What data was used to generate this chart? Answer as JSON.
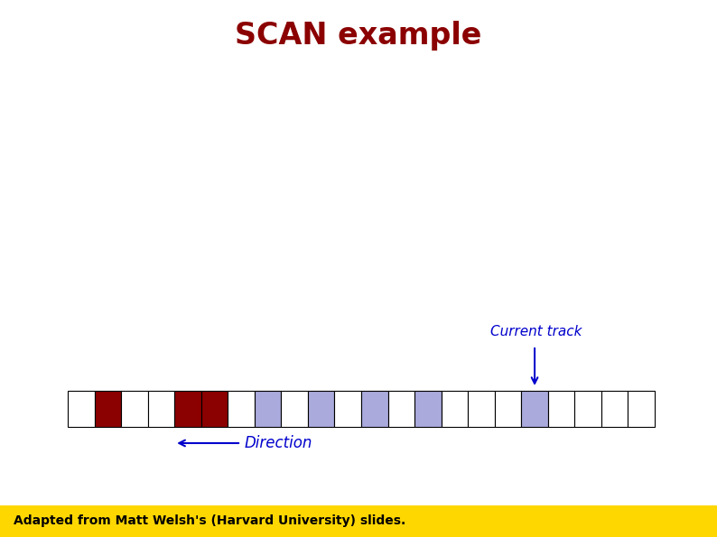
{
  "title": "SCAN example",
  "title_color": "#8B0000",
  "title_fontsize": 24,
  "title_bold": true,
  "num_cells": 22,
  "dark_red_cells": [
    1,
    4,
    5
  ],
  "light_blue_cells": [
    7,
    9,
    11,
    13,
    17
  ],
  "current_track_cell": 17,
  "current_track_label": "Current track",
  "direction_label": "Direction",
  "cell_color_white": "#FFFFFF",
  "cell_color_dark_red": "#8B0000",
  "cell_color_light_blue": "#AAAADD",
  "cell_border_color": "#000000",
  "arrow_color": "#0000CC",
  "annotation_color": "#0000CC",
  "annotation_fontsize": 11,
  "direction_fontsize": 12,
  "footer_text": "Adapted from Matt Welsh's (Harvard University) slides.",
  "footer_bg": "#FFD700",
  "footer_text_color": "#000000",
  "footer_fontsize": 10,
  "bg_color": "#FFFFFF"
}
